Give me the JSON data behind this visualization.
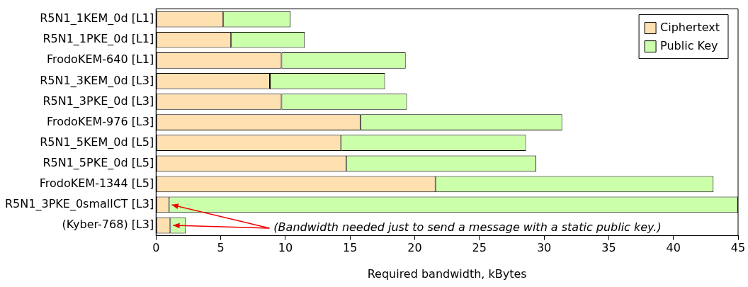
{
  "chart_data": {
    "type": "bar",
    "orientation": "horizontal",
    "stacked": true,
    "xlabel": "Required bandwidth, kBytes",
    "categories": [
      "R5N1_1KEM_0d [L1]",
      "R5N1_1PKE_0d [L1]",
      "FrodoKEM-640 [L1]",
      "R5N1_3KEM_0d [L3]",
      "R5N1_3PKE_0d [L3]",
      "FrodoKEM-976 [L3]",
      "R5N1_5KEM_0d [L5]",
      "R5N1_5PKE_0d [L5]",
      "FrodoKEM-1344 [L5]",
      "R5N1_3PKE_0smallCT [L3]",
      "(Kyber-768) [L3]"
    ],
    "series": [
      {
        "name": "Ciphertext",
        "color": "#ffe0b0",
        "values": [
          5.2,
          5.8,
          9.7,
          8.8,
          9.7,
          15.8,
          14.3,
          14.7,
          21.6,
          1.0,
          1.1
        ]
      },
      {
        "name": "Public Key",
        "color": "#ccffaa",
        "values": [
          5.2,
          5.7,
          9.6,
          8.9,
          9.7,
          15.6,
          14.3,
          14.7,
          21.5,
          44.0,
          1.2
        ]
      }
    ],
    "xlim": [
      0,
      45
    ],
    "xticks": [
      0,
      5,
      10,
      15,
      20,
      25,
      30,
      35,
      40,
      45
    ],
    "grid": false,
    "legend": "top right",
    "annotations": [
      {
        "text": "(Bandwidth needed just to send a message with a static public key.)",
        "x": 1.1,
        "y": "(Kyber-768) [L3]"
      }
    ]
  }
}
